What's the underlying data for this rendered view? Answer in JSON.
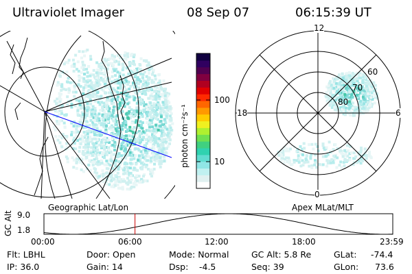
{
  "header": {
    "instrument": "Ultraviolet Imager",
    "date": "08 Sep 07",
    "time": "06:15:39 UT"
  },
  "left_panel": {
    "label": "Geographic Lat/Lon"
  },
  "right_panel": {
    "label": "Apex MLat/MLT",
    "mlt_labels": {
      "top": "12",
      "bottom": "0",
      "left": "18",
      "right": "6"
    },
    "mlat_labels": [
      "60",
      "70",
      "80"
    ]
  },
  "colorbar": {
    "unit_label": "photon cm⁻²s⁻¹",
    "tick_100": "100",
    "tick_10": "10",
    "colors": [
      "#ffffff",
      "#e0f0f0",
      "#c0f0f0",
      "#90e6e6",
      "#60dcd0",
      "#30d2b0",
      "#40d080",
      "#70e050",
      "#b0f030",
      "#f0f020",
      "#ffcc00",
      "#ff9900",
      "#ff6600",
      "#ff2a00",
      "#e00000",
      "#b00020",
      "#800040",
      "#500050",
      "#300060",
      "#100040"
    ]
  },
  "timeline": {
    "ylabel": "GC Alt",
    "y_max": "9.0",
    "y_min": "1.8",
    "x_ticks": [
      "00:00",
      "06:00",
      "12:00",
      "18:00",
      "23:59"
    ],
    "current_time_fraction": 0.261
  },
  "info": {
    "flt": "Flt: LBHL",
    "ip": "IP: 36.0",
    "door": "Door: Open",
    "gain": "Gain: 14",
    "mode": "Mode: Normal",
    "dsp_label": "Dsp:",
    "dsp_value": "-4.5",
    "gcalt": "GC Alt: 5.8 Re",
    "seq": "Seq: 39",
    "glat_label": "GLat:",
    "glat_value": "-74.4",
    "glon_label": "GLon:",
    "glon_value": "73.6"
  }
}
